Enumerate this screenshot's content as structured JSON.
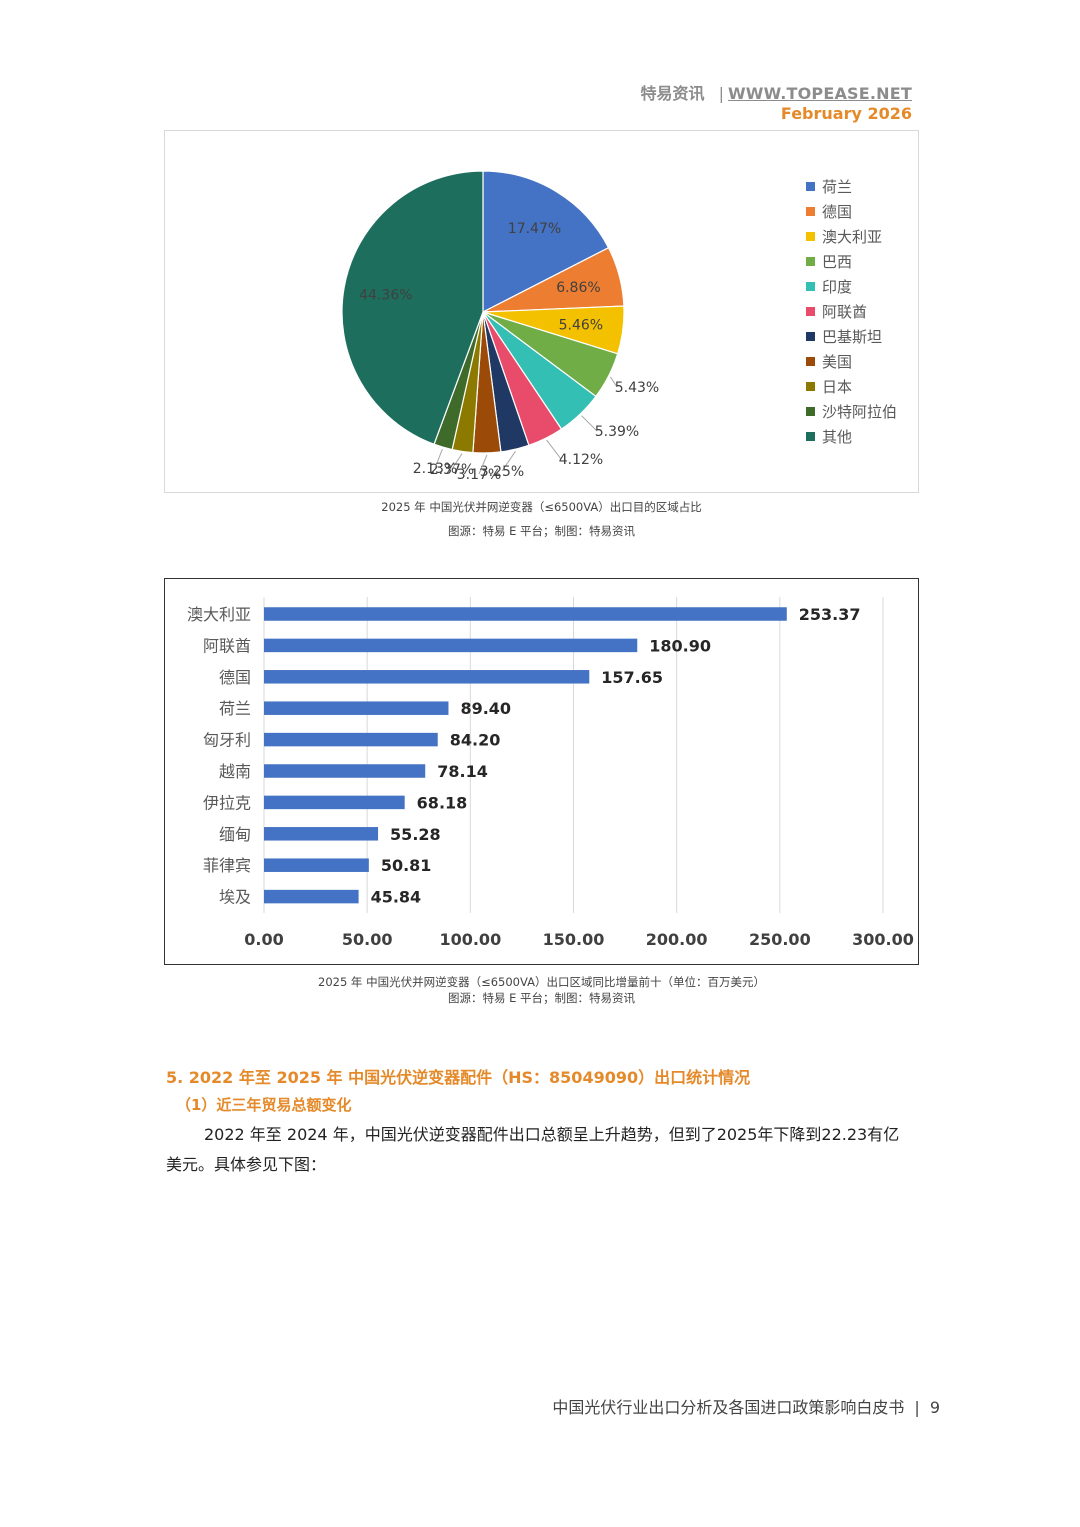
{
  "header": {
    "brand": "特易资讯",
    "separator": "|",
    "site": "WWW.TOPEASE.NET",
    "date": "February 2026"
  },
  "pie": {
    "caption": "2025 年 中国光伏并网逆变器（≤6500VA）出口目的区域占比",
    "source": "图源：特易 E 平台；制图：特易资讯"
  },
  "bar": {
    "caption": "2025 年 中国光伏并网逆变器（≤6500VA）出口区域同比增量前十（单位：百万美元）",
    "source": "图源：特易 E 平台；制图：特易资讯"
  },
  "chart_data": [
    {
      "type": "pie",
      "categories": [
        "荷兰",
        "德国",
        "澳大利亚",
        "巴西",
        "印度",
        "阿联酋",
        "巴基斯坦",
        "美国",
        "日本",
        "沙特阿拉伯",
        "其他"
      ],
      "values": [
        17.47,
        6.86,
        5.46,
        5.43,
        5.39,
        4.12,
        3.25,
        3.17,
        2.37,
        2.13,
        44.36
      ],
      "labels": [
        "17.47%",
        "6.86%",
        "5.46%",
        "5.43%",
        "5.39%",
        "4.12%",
        "3.25%",
        "3.17%",
        "2.37%",
        "2.13%",
        "44.36%"
      ],
      "colors": [
        "#4472c4",
        "#ed7d31",
        "#f4c100",
        "#70ad47",
        "#33bfb4",
        "#e84c6a",
        "#203864",
        "#9c4a08",
        "#8c7a00",
        "#3e6b2a",
        "#1e6e5e"
      ],
      "title": "",
      "legend": "right"
    },
    {
      "type": "bar",
      "orientation": "horizontal",
      "categories": [
        "澳大利亚",
        "阿联酋",
        "德国",
        "荷兰",
        "匈牙利",
        "越南",
        "伊拉克",
        "缅甸",
        "菲律宾",
        "埃及"
      ],
      "values": [
        253.37,
        180.9,
        157.65,
        89.4,
        84.2,
        78.14,
        68.18,
        55.28,
        50.81,
        45.84
      ],
      "value_labels": [
        "253.37",
        "180.90",
        "157.65",
        "89.40",
        "84.20",
        "78.14",
        "68.18",
        "55.28",
        "50.81",
        "45.84"
      ],
      "xlim": [
        0,
        300
      ],
      "x_ticks": [
        0,
        50,
        100,
        150,
        200,
        250,
        300
      ],
      "x_tick_labels": [
        "0.00",
        "50.00",
        "100.00",
        "150.00",
        "200.00",
        "250.00",
        "300.00"
      ],
      "grid": "vertical",
      "color": "#4472c4",
      "title": ""
    }
  ],
  "section": {
    "title": "5. 2022 年至 2025 年 中国光伏逆变器配件（HS：85049090）出口统计情况",
    "subtitle": "（1）近三年贸易总额变化",
    "paragraph": "2022 年至 2024 年，中国光伏逆变器配件出口总额呈上升趋势，但到了2025年下降到22.23有亿美元。具体参见下图："
  },
  "footer": {
    "title": "中国光伏行业出口分析及各国进口政策影响白皮书",
    "separator": "|",
    "page_number": "9"
  }
}
